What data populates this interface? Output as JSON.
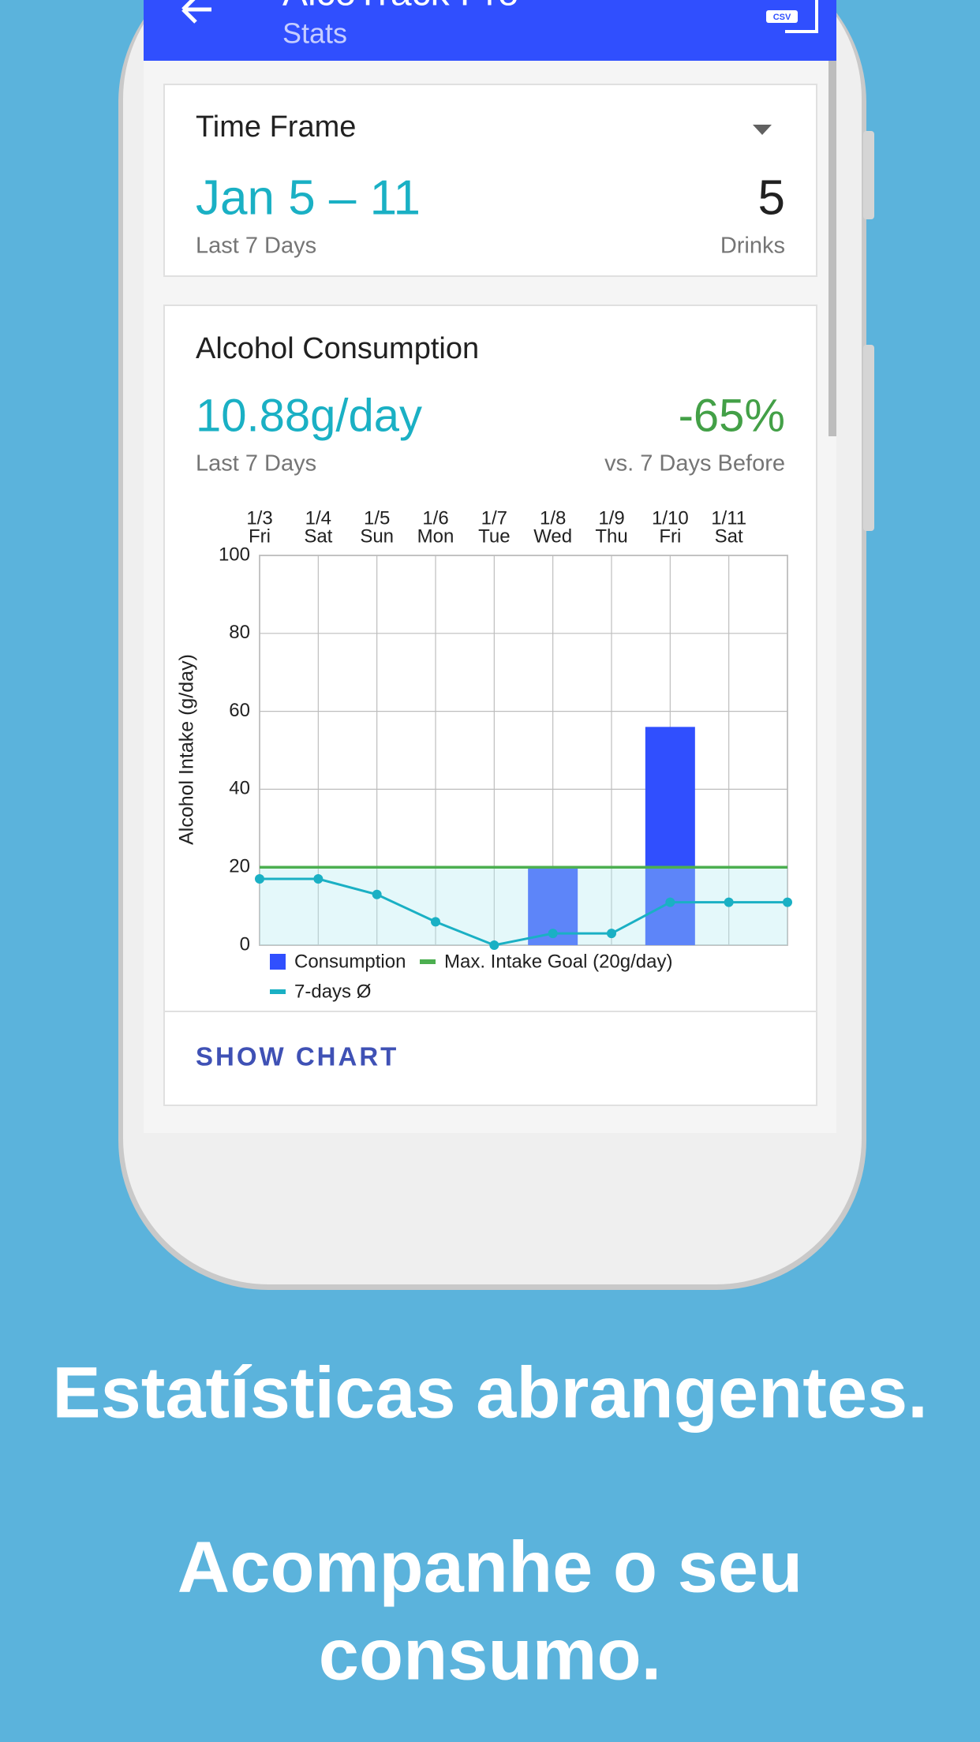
{
  "header": {
    "title": "AlcoTrack Pro",
    "subtitle": "Stats",
    "export_icon": "CSV"
  },
  "time_frame_card": {
    "label": "Time Frame",
    "range": "Jan 5 – 11",
    "range_caption": "Last 7 Days",
    "count": "5",
    "count_caption": "Drinks"
  },
  "consumption_card": {
    "title": "Alcohol Consumption",
    "average": "10.88g/day",
    "average_caption": "Last 7 Days",
    "change": "-65%",
    "change_caption": "vs. 7 Days Before",
    "button": "SHOW CHART"
  },
  "chart_data": {
    "type": "bar",
    "categories": [
      "1/3",
      "1/4",
      "1/5",
      "1/6",
      "1/7",
      "1/8",
      "1/9",
      "1/10",
      "1/11",
      null
    ],
    "weekdays": [
      "Fri",
      "Sat",
      "Sun",
      "Mon",
      "Tue",
      "Wed",
      "Thu",
      "Fri",
      "Sat",
      null
    ],
    "y_label": "Alcohol Intake (g/day)",
    "ylim": [
      0,
      100
    ],
    "yticks": [
      0,
      20,
      40,
      60,
      80,
      100
    ],
    "grid": true,
    "series": [
      {
        "name": "Consumption",
        "type": "bar",
        "color": "#304ffe",
        "values": [
          0,
          0,
          0,
          0,
          0,
          20,
          0,
          56,
          0,
          null
        ]
      },
      {
        "name": "7-days Ø",
        "type": "line",
        "color": "#1ab0c4",
        "values": [
          17,
          17,
          13,
          6,
          0,
          3,
          3,
          11,
          11,
          11
        ]
      }
    ],
    "goal": {
      "name": "Max. Intake Goal (20g/day)",
      "color": "#4caf50",
      "value": 20
    }
  },
  "tagline": {
    "heading": "Estatísticas abrangentes.",
    "lines": [
      "Acompanhe o seu",
      "consumo."
    ]
  }
}
